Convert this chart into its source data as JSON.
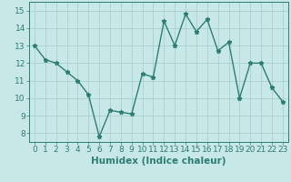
{
  "x": [
    0,
    1,
    2,
    3,
    4,
    5,
    6,
    7,
    8,
    9,
    10,
    11,
    12,
    13,
    14,
    15,
    16,
    17,
    18,
    19,
    20,
    21,
    22,
    23
  ],
  "y": [
    13,
    12.2,
    12,
    11.5,
    11,
    10.2,
    7.8,
    9.3,
    9.2,
    9.1,
    11.4,
    11.2,
    14.4,
    13,
    14.8,
    13.8,
    14.5,
    12.7,
    13.2,
    10,
    12,
    12,
    10.6,
    9.8
  ],
  "line_color": "#2e7d72",
  "marker": "*",
  "marker_size": 3.5,
  "bg_color": "#c8e8e8",
  "grid_color": "#aad0d0",
  "xlabel": "Humidex (Indice chaleur)",
  "xlim": [
    -0.5,
    23.5
  ],
  "ylim": [
    7.5,
    15.5
  ],
  "yticks": [
    8,
    9,
    10,
    11,
    12,
    13,
    14,
    15
  ],
  "xticks": [
    0,
    1,
    2,
    3,
    4,
    5,
    6,
    7,
    8,
    9,
    10,
    11,
    12,
    13,
    14,
    15,
    16,
    17,
    18,
    19,
    20,
    21,
    22,
    23
  ],
  "tick_label_size": 6.5,
  "xlabel_size": 7.5,
  "line_width": 1.0
}
